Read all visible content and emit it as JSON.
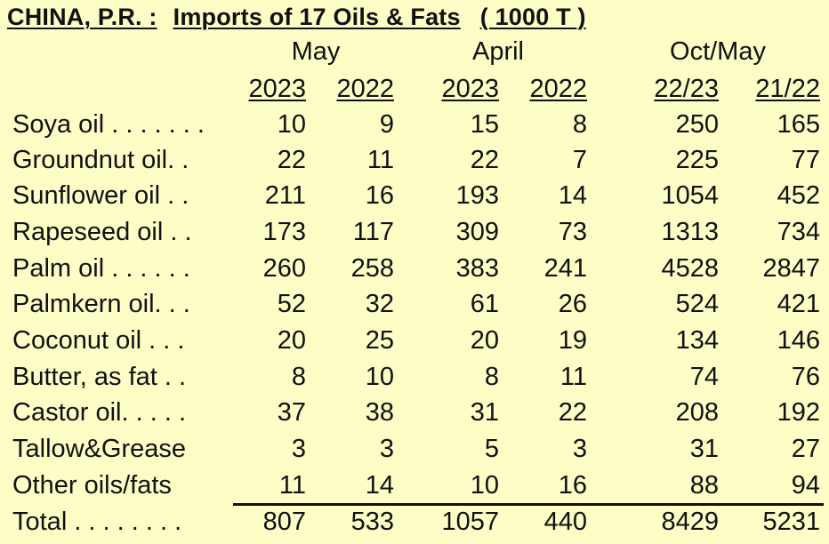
{
  "title": {
    "country": "CHINA, P.R. :",
    "subject": "Imports of 17 Oils & Fats",
    "unit": "( 1000 T )"
  },
  "column_groups": [
    "May",
    "April",
    "Oct/May"
  ],
  "column_years": [
    "2023",
    "2022",
    "2023",
    "2022",
    "22/23",
    "21/22"
  ],
  "rows": [
    {
      "label": "Soya oil . . . . . . .",
      "values": [
        "10",
        "9",
        "15",
        "8",
        "250",
        "165"
      ]
    },
    {
      "label": "Groundnut oil. .",
      "values": [
        "22",
        "11",
        "22",
        "7",
        "225",
        "77"
      ]
    },
    {
      "label": "Sunflower oil . .",
      "values": [
        "211",
        "16",
        "193",
        "14",
        "1054",
        "452"
      ]
    },
    {
      "label": "Rapeseed oil . .",
      "values": [
        "173",
        "117",
        "309",
        "73",
        "1313",
        "734"
      ]
    },
    {
      "label": "Palm oil . . . . . .",
      "values": [
        "260",
        "258",
        "383",
        "241",
        "4528",
        "2847"
      ]
    },
    {
      "label": "Palmkern oil. . .",
      "values": [
        "52",
        "32",
        "61",
        "26",
        "524",
        "421"
      ]
    },
    {
      "label": "Coconut oil . . .",
      "values": [
        "20",
        "25",
        "20",
        "19",
        "134",
        "146"
      ]
    },
    {
      "label": "Butter, as fat . .",
      "values": [
        "8",
        "10",
        "8",
        "11",
        "74",
        "76"
      ]
    },
    {
      "label": "Castor oil. . . . .",
      "values": [
        "37",
        "38",
        "31",
        "22",
        "208",
        "192"
      ]
    },
    {
      "label": "Tallow&Grease",
      "values": [
        "3",
        "3",
        "5",
        "3",
        "31",
        "27"
      ]
    },
    {
      "label": "Other oils/fats",
      "values": [
        "11",
        "14",
        "10",
        "16",
        "88",
        "94"
      ]
    }
  ],
  "total": {
    "label": "Total . . . . . . . .",
    "values": [
      "807",
      "533",
      "1057",
      "440",
      "8429",
      "5231"
    ]
  }
}
